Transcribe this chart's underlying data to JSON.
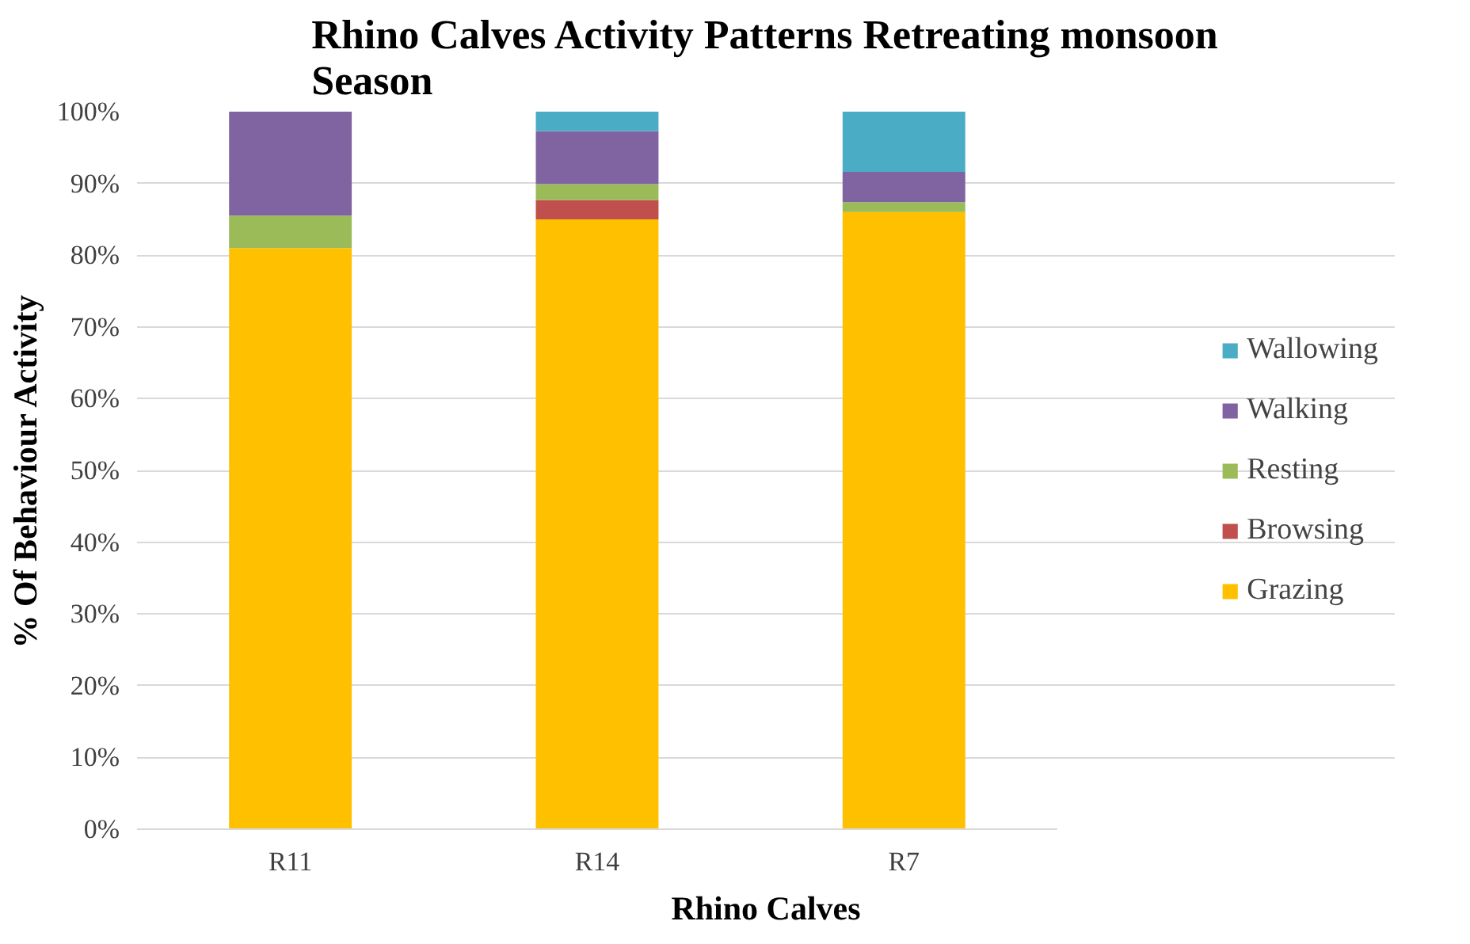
{
  "chart_data": {
    "type": "bar",
    "stacked": true,
    "title": "Rhino Calves Activity Patterns Retreating monsoon Season",
    "xlabel": "Rhino Calves",
    "ylabel": "% Of Behaviour Activity",
    "categories": [
      "R11",
      "R14",
      "R7"
    ],
    "series": [
      {
        "name": "Grazing",
        "color": "#ffc000",
        "values": [
          81,
          85,
          86
        ]
      },
      {
        "name": "Browsing",
        "color": "#c0504d",
        "values": [
          0,
          2.7,
          0
        ]
      },
      {
        "name": "Resting",
        "color": "#9bbb59",
        "values": [
          4.5,
          2.2,
          1.4
        ]
      },
      {
        "name": "Walking",
        "color": "#8064a2",
        "values": [
          14.5,
          7.4,
          4.2
        ]
      },
      {
        "name": "Wallowing",
        "color": "#4bacc6",
        "values": [
          0,
          2.7,
          8.4
        ]
      }
    ],
    "ylim": [
      0,
      100
    ],
    "yticks": [
      {
        "value": 0,
        "label": "0%"
      },
      {
        "value": 10,
        "label": "10%"
      },
      {
        "value": 20,
        "label": "20%"
      },
      {
        "value": 30,
        "label": "30%"
      },
      {
        "value": 40,
        "label": "40%"
      },
      {
        "value": 50,
        "label": "50%"
      },
      {
        "value": 60,
        "label": "60%"
      },
      {
        "value": 70,
        "label": "70%"
      },
      {
        "value": 80,
        "label": "80%"
      },
      {
        "value": 90,
        "label": "90%"
      },
      {
        "value": 100,
        "label": "100%"
      }
    ],
    "grid": "y",
    "legend": "right"
  }
}
